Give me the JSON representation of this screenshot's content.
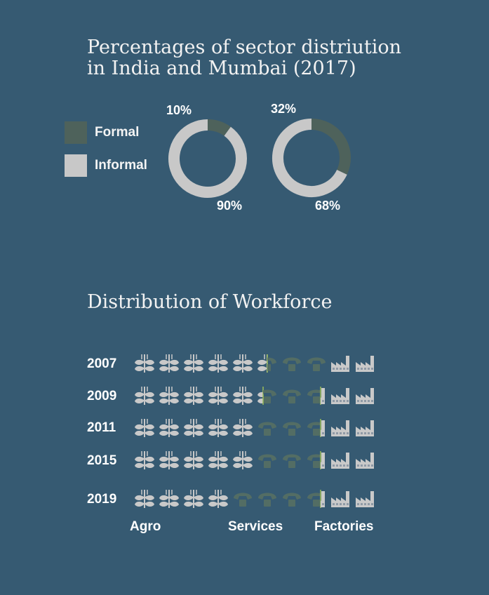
{
  "colors": {
    "background": "#365a72",
    "formal": "#4e625b",
    "informal": "#c8c8c8",
    "icon_light": "#c9c9c9",
    "icon_dark": "#536d64",
    "accent_green": "#9cbc5a"
  },
  "donut_title": "Percentages of sector distriution in India and Mumbai (2017)",
  "workforce_title": "Distribution of Workforce",
  "legend": [
    {
      "label": "Formal",
      "color": "#4e625b"
    },
    {
      "label": "Informal",
      "color": "#c8c8c8"
    }
  ],
  "chart_data": [
    {
      "type": "pie",
      "title": "Percentages of sector distriution in India and Mumbai (2017)",
      "donuts": [
        {
          "formal_pct": 10,
          "informal_pct": 90,
          "formal_label": "10%",
          "informal_label": "90%"
        },
        {
          "formal_pct": 32,
          "informal_pct": 68,
          "formal_label": "32%",
          "informal_label": "68%"
        }
      ],
      "legend_placement": "left"
    },
    {
      "type": "bar",
      "title": "Distribution of Workforce",
      "icon_unit_count": 10,
      "categories": [
        "2007",
        "2009",
        "2011",
        "2015",
        "2019"
      ],
      "series": [
        {
          "name": "Agro",
          "values": [
            5.5,
            5.3,
            5.0,
            5.0,
            4.0
          ]
        },
        {
          "name": "Services",
          "values": [
            2.5,
            2.4,
            2.7,
            2.7,
            3.7
          ]
        },
        {
          "name": "Factories",
          "values": [
            2.0,
            2.3,
            2.3,
            2.3,
            2.3
          ]
        }
      ]
    }
  ],
  "category_labels": [
    "Agro",
    "Services",
    "Factories"
  ]
}
